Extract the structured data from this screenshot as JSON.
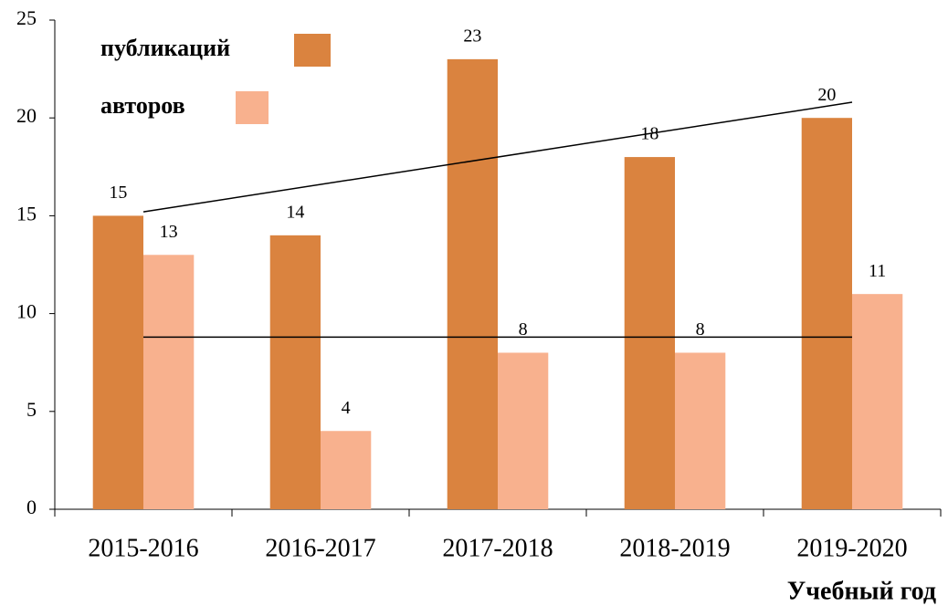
{
  "chart_data": {
    "type": "bar",
    "categories": [
      "2015-2016",
      "2016-2017",
      "2017-2018",
      "2018-2019",
      "2019-2020"
    ],
    "series": [
      {
        "name": "публикаций",
        "color": "#da833f",
        "values": [
          15,
          14,
          23,
          18,
          20
        ]
      },
      {
        "name": "авторов",
        "color": "#f8b18e",
        "values": [
          13,
          4,
          8,
          8,
          11
        ]
      }
    ],
    "x_label": "Учебный год",
    "ylim": [
      0,
      25
    ],
    "yticks": [
      0,
      5,
      10,
      15,
      20,
      25
    ],
    "grid": false,
    "trendline": true,
    "legend": "upper left"
  }
}
